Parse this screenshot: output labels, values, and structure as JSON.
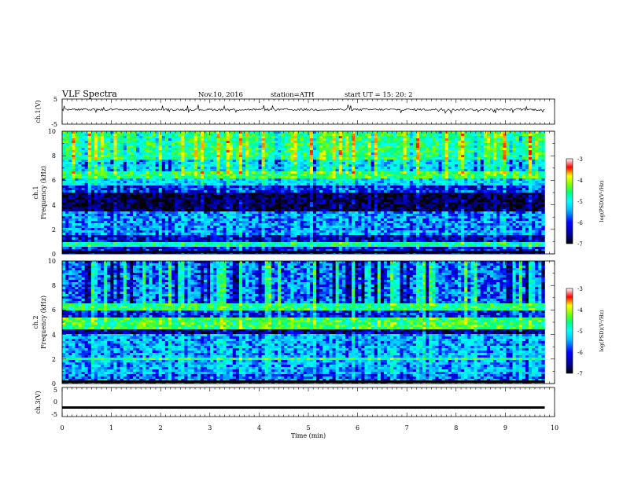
{
  "header": {
    "title": "VLF  Spectra",
    "date": "Nov.10, 2016",
    "station": "station=ATH",
    "start": "start  UT  =    15: 20: 2"
  },
  "chart_data": [
    {
      "type": "line",
      "panel": "ch1-waveform",
      "ylabel": "ch.1(V)",
      "yticks": [
        "5",
        "-5"
      ],
      "ylim": [
        -5,
        5
      ],
      "xlim": [
        0,
        10
      ],
      "level": 0.8
    },
    {
      "type": "heatmap",
      "panel": "ch1-spectrogram",
      "ylabel": [
        "ch.1",
        "Frequency  (kHz)"
      ],
      "yticks": [
        "0",
        "2",
        "4",
        "6",
        "8",
        "10"
      ],
      "ylim": [
        0,
        10
      ],
      "xlim": [
        0,
        9.8
      ],
      "colorbar": {
        "label": "log(PSD)(V²/Hz)",
        "ticks": [
          "-3",
          "-4",
          "-5",
          "-6",
          "-7"
        ],
        "range": [
          -7,
          -3
        ]
      },
      "bands_khz": [
        {
          "from": 0.0,
          "to": 0.5,
          "level": -6.3
        },
        {
          "from": 0.5,
          "to": 0.9,
          "level": -5.2
        },
        {
          "from": 0.9,
          "to": 1.6,
          "level": -6.4
        },
        {
          "from": 1.6,
          "to": 2.0,
          "level": -5.8
        },
        {
          "from": 2.0,
          "to": 3.4,
          "level": -5.9
        },
        {
          "from": 3.4,
          "to": 5.0,
          "level": -6.8
        },
        {
          "from": 5.0,
          "to": 5.6,
          "level": -6.2
        },
        {
          "from": 5.6,
          "to": 6.2,
          "level": -5.6
        },
        {
          "from": 6.2,
          "to": 6.8,
          "level": -4.9
        },
        {
          "from": 6.8,
          "to": 7.6,
          "level": -5.6
        },
        {
          "from": 7.6,
          "to": 10.0,
          "level": -5.0
        }
      ]
    },
    {
      "type": "heatmap",
      "panel": "ch2-spectrogram",
      "ylabel": [
        "ch.2",
        "Frequency  (kHz)"
      ],
      "yticks": [
        "0",
        "2",
        "4",
        "6",
        "8",
        "10"
      ],
      "ylim": [
        0,
        10
      ],
      "xlim": [
        0,
        9.8
      ],
      "colorbar": {
        "label": "log(PSD)(V²/Hz)",
        "ticks": [
          "-3",
          "-4",
          "-5",
          "-6",
          "-7"
        ],
        "range": [
          -7,
          -3
        ]
      },
      "bands_khz": [
        {
          "from": 0.0,
          "to": 0.8,
          "level": -6.0
        },
        {
          "from": 0.8,
          "to": 1.9,
          "level": -5.8
        },
        {
          "from": 1.9,
          "to": 2.2,
          "level": -4.9
        },
        {
          "from": 2.2,
          "to": 4.0,
          "level": -5.8
        },
        {
          "from": 4.0,
          "to": 4.5,
          "level": -6.6
        },
        {
          "from": 4.5,
          "to": 5.3,
          "level": -4.9
        },
        {
          "from": 5.3,
          "to": 6.0,
          "level": -6.2
        },
        {
          "from": 6.0,
          "to": 6.5,
          "level": -5.0
        },
        {
          "from": 6.5,
          "to": 10.0,
          "level": -6.0
        }
      ]
    },
    {
      "type": "line",
      "panel": "ch3-waveform",
      "ylabel": "ch.3(V)",
      "yticks": [
        "5",
        "0",
        "-5"
      ],
      "ylim": [
        -5,
        5
      ],
      "xlim": [
        0,
        10
      ],
      "level": -1.9
    }
  ],
  "xaxis": {
    "label": "Time  (min)",
    "ticks": [
      "0",
      "1",
      "2",
      "3",
      "4",
      "5",
      "6",
      "7",
      "8",
      "9",
      "10"
    ]
  },
  "colors": {
    "line": "#000000",
    "colormap": [
      "#000000",
      "#00008b",
      "#0000ff",
      "#00bfff",
      "#00ffff",
      "#00ff80",
      "#7fff00",
      "#ffff00",
      "#ff8000",
      "#ff0000",
      "#ffffff"
    ]
  }
}
